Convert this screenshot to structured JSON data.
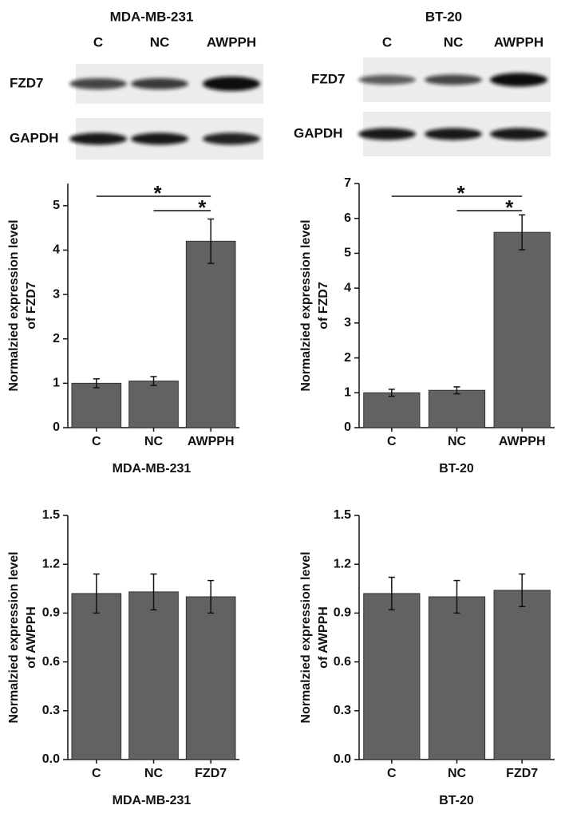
{
  "blots": [
    {
      "title": "MDA-MB-231",
      "lanes": [
        "C",
        "NC",
        "AWPPH"
      ],
      "rows": [
        "FZD7",
        "GAPDH"
      ]
    },
    {
      "title": "BT-20",
      "lanes": [
        "C",
        "NC",
        "AWPPH"
      ],
      "rows": [
        "FZD7",
        "GAPDH"
      ]
    }
  ],
  "chart_data": [
    {
      "type": "bar",
      "x_label": "MDA-MB-231",
      "y_label": [
        "Normalzied expression level",
        "of FZD7"
      ],
      "categories": [
        "C",
        "NC",
        "AWPPH"
      ],
      "values": [
        1.0,
        1.05,
        4.2
      ],
      "errors": [
        0.1,
        0.1,
        0.5
      ],
      "color": "#626262",
      "ylim": [
        0,
        5.5
      ],
      "yticks": [
        0,
        1,
        2,
        3,
        4,
        5
      ],
      "annotations": [
        {
          "text": "*",
          "between": [
            0,
            2
          ]
        },
        {
          "text": "*",
          "between": [
            1,
            2
          ]
        }
      ]
    },
    {
      "type": "bar",
      "x_label": "BT-20",
      "y_label": [
        "Normalzied expression level",
        "of FZD7"
      ],
      "categories": [
        "C",
        "NC",
        "AWPPH"
      ],
      "values": [
        1.0,
        1.07,
        5.6
      ],
      "errors": [
        0.1,
        0.1,
        0.5
      ],
      "color": "#626262",
      "ylim": [
        0,
        7
      ],
      "yticks": [
        0,
        1,
        2,
        3,
        4,
        5,
        6,
        7
      ],
      "annotations": [
        {
          "text": "*",
          "between": [
            0,
            2
          ]
        },
        {
          "text": "*",
          "between": [
            1,
            2
          ]
        }
      ]
    },
    {
      "type": "bar",
      "x_label": "MDA-MB-231",
      "y_label": [
        "Normalzied expression level",
        "of AWPPH"
      ],
      "categories": [
        "C",
        "NC",
        "FZD7"
      ],
      "values": [
        1.02,
        1.03,
        1.0
      ],
      "errors": [
        0.12,
        0.11,
        0.1
      ],
      "color": "#626262",
      "ylim": [
        0,
        1.5
      ],
      "yticks": [
        {
          "value": 0,
          "label": "0.0"
        },
        0.3,
        0.6,
        0.9,
        1.2,
        1.5
      ]
    },
    {
      "type": "bar",
      "x_label": "BT-20",
      "y_label": [
        "Normalzied expression level",
        "of AWPPH"
      ],
      "categories": [
        "C",
        "NC",
        "FZD7"
      ],
      "values": [
        1.02,
        1.0,
        1.04
      ],
      "errors": [
        0.1,
        0.1,
        0.1
      ],
      "color": "#626262",
      "ylim": [
        0,
        1.5
      ],
      "yticks": [
        {
          "value": 0,
          "label": "0.0"
        },
        0.3,
        0.6,
        0.9,
        1.2,
        1.5
      ]
    }
  ]
}
